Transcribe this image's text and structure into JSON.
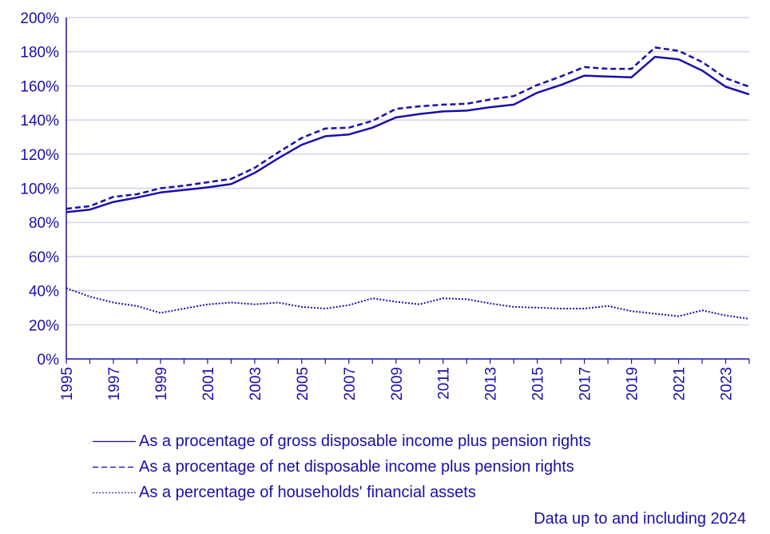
{
  "chart_data": {
    "type": "line",
    "x": [
      1995,
      1996,
      1997,
      1998,
      1999,
      2000,
      2001,
      2002,
      2003,
      2004,
      2005,
      2006,
      2007,
      2008,
      2009,
      2010,
      2011,
      2012,
      2013,
      2014,
      2015,
      2016,
      2017,
      2018,
      2019,
      2020,
      2021,
      2022,
      2023,
      2024
    ],
    "x_tick_labels": [
      "1995",
      "1997",
      "1999",
      "2001",
      "2003",
      "2005",
      "2007",
      "2009",
      "2011",
      "2013",
      "2015",
      "2017",
      "2019",
      "2021",
      "2023"
    ],
    "y_tick_labels": [
      "0%",
      "20%",
      "40%",
      "60%",
      "80%",
      "100%",
      "120%",
      "140%",
      "160%",
      "180%",
      "200%"
    ],
    "ylim": [
      0,
      200
    ],
    "xlim": [
      1995,
      2024
    ],
    "grid": "horizontal",
    "legend_position": "bottom",
    "series": [
      {
        "name": "As a procentage of gross disposable income plus pension rights",
        "style": "solid",
        "values": [
          86,
          87.5,
          92,
          94.5,
          97.5,
          99,
          100.5,
          102.5,
          109,
          117.5,
          125.5,
          130.5,
          131.5,
          135.5,
          141.5,
          143.5,
          145,
          145.5,
          147.5,
          149,
          156,
          160.5,
          166,
          165.5,
          165,
          177,
          175.5,
          169,
          159.5,
          155
        ]
      },
      {
        "name": "As a procentage of net disposable income plus pension rights",
        "style": "dashed",
        "values": [
          88,
          89.5,
          95,
          96.5,
          100,
          101.5,
          103.5,
          105.5,
          112,
          121,
          129.5,
          135,
          135.5,
          139.5,
          146.5,
          148,
          149,
          149.5,
          152,
          154,
          160.5,
          165.5,
          171,
          170,
          170,
          182.5,
          180.5,
          174,
          164.5,
          159.5
        ]
      },
      {
        "name": "As a percentage of households' financial assets",
        "style": "dotted",
        "values": [
          41.5,
          36.5,
          33,
          31,
          27,
          29.5,
          32,
          33,
          32,
          33,
          30.5,
          29.5,
          31.5,
          35.5,
          33.5,
          32,
          35.5,
          35,
          32.5,
          30.5,
          30,
          29.5,
          29.5,
          31,
          28,
          26.5,
          25,
          28.5,
          25.5,
          23.5
        ]
      }
    ],
    "note": "Data up to and including 2024"
  },
  "colors": {
    "line": "#1a0fa8",
    "grid": "#c9c9e3",
    "axis": "#1a0fa8"
  }
}
